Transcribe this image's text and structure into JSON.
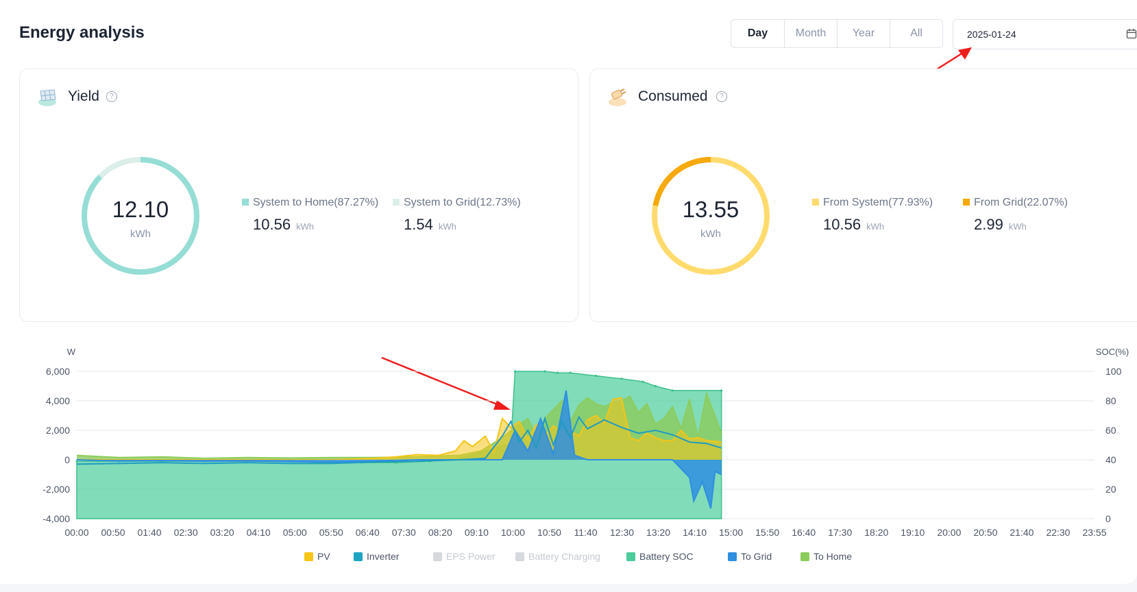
{
  "header": {
    "title": "Energy analysis",
    "tabs": [
      {
        "label": "Day",
        "active": true
      },
      {
        "label": "Month",
        "active": false
      },
      {
        "label": "Year",
        "active": false
      },
      {
        "label": "All",
        "active": false
      }
    ],
    "date": "2025-01-24",
    "date_icon": "calendar-icon"
  },
  "yield": {
    "title": "Yield",
    "help_icon": "help-circle-icon",
    "total": "12.10",
    "unit": "kWh",
    "items": [
      {
        "label": "System to Home(87.27%)",
        "value": "10.56",
        "unit": "kWh",
        "color": "#95ddd5",
        "percent": 87.27
      },
      {
        "label": "System to Grid(12.73%)",
        "value": "1.54",
        "unit": "kWh",
        "color": "#dbeee9",
        "percent": 12.73
      }
    ]
  },
  "consumed": {
    "title": "Consumed",
    "help_icon": "help-circle-icon",
    "total": "13.55",
    "unit": "kWh",
    "items": [
      {
        "label": "From System(77.93%)",
        "value": "10.56",
        "unit": "kWh",
        "color": "#ffdb6e",
        "percent": 77.93
      },
      {
        "label": "From Grid(22.07%)",
        "value": "2.99",
        "unit": "kWh",
        "color": "#f6a90c",
        "percent": 22.07
      }
    ]
  },
  "chart_data": {
    "type": "area",
    "y_left_label": "W",
    "y_right_label": "SOC(%)",
    "y_left_ticks": [
      "6,000",
      "4,000",
      "2,000",
      "0",
      "-2,000",
      "-4,000"
    ],
    "y_right_ticks": [
      "100",
      "80",
      "60",
      "40",
      "20",
      "0"
    ],
    "ylim_left": [
      -4000,
      6000
    ],
    "ylim_right": [
      0,
      100
    ],
    "x_ticks": [
      "00:00",
      "00:50",
      "01:40",
      "02:30",
      "03:20",
      "04:10",
      "05:00",
      "05:50",
      "06:40",
      "07:30",
      "08:20",
      "09:10",
      "10:00",
      "10:50",
      "11:40",
      "12:30",
      "13:20",
      "14:10",
      "15:00",
      "15:50",
      "16:40",
      "17:30",
      "18:20",
      "19:10",
      "20:00",
      "20:50",
      "21:40",
      "22:30",
      "23:55"
    ],
    "x_range_hours": [
      0,
      23.917
    ],
    "grid": true,
    "legend_position": "bottom",
    "legend": [
      {
        "name": "PV",
        "color": "#f5c518",
        "enabled": true
      },
      {
        "name": "Inverter",
        "color": "#1fa5c4",
        "enabled": true
      },
      {
        "name": "EPS Power",
        "color": "#bdbdbd",
        "enabled": false
      },
      {
        "name": "Battery Charging",
        "color": "#bdbdbd",
        "enabled": false
      },
      {
        "name": "Battery SOC",
        "color": "#4ccd9b",
        "enabled": true
      },
      {
        "name": "To Grid",
        "color": "#2f8fe0",
        "enabled": true
      },
      {
        "name": "To Home",
        "color": "#8ccc5c",
        "enabled": true
      }
    ],
    "series": [
      {
        "name": "Battery SOC",
        "axis": "right",
        "x": [
          0,
          0.5,
          1,
          2,
          3,
          4,
          5,
          5.8,
          6.7,
          7.5,
          8.3,
          9,
          9.5,
          10.05,
          10.2,
          10.3,
          11.0,
          11.3,
          11.6,
          12.2,
          12.8,
          13.3,
          13.6,
          14.0,
          15.15
        ],
        "values": [
          39,
          39,
          39,
          39,
          39,
          39,
          39,
          38,
          38,
          38,
          39,
          41,
          45,
          50,
          50,
          100,
          100,
          99,
          99,
          97,
          95,
          93,
          90,
          87,
          87
        ]
      },
      {
        "name": "PV",
        "axis": "left",
        "x": [
          0,
          1,
          2,
          3,
          4,
          5,
          6,
          7,
          7.5,
          8,
          8.5,
          8.9,
          9.1,
          9.3,
          9.6,
          9.8,
          10.0,
          10.2,
          10.4,
          10.6,
          10.8,
          11.0,
          11.2,
          11.4,
          11.6,
          11.8,
          12.0,
          12.2,
          12.4,
          12.6,
          12.8,
          13.0,
          13.2,
          13.4,
          13.6,
          13.8,
          14.0,
          14.2,
          14.4,
          14.6,
          14.8,
          15.15
        ],
        "values": [
          0,
          0,
          0,
          0,
          0,
          0,
          0,
          100,
          200,
          350,
          300,
          600,
          1300,
          900,
          1600,
          500,
          2800,
          2200,
          2600,
          1400,
          2400,
          1600,
          2300,
          1900,
          2000,
          1600,
          2700,
          3000,
          2500,
          4100,
          4200,
          1500,
          1300,
          1800,
          1500,
          1300,
          1300,
          2000,
          1400,
          1500,
          1300,
          1200
        ]
      },
      {
        "name": "To Home",
        "axis": "left",
        "x": [
          0,
          1,
          2,
          3,
          4,
          5,
          6,
          7,
          8,
          9,
          9.5,
          10.0,
          10.3,
          10.6,
          10.8,
          11.0,
          11.2,
          11.4,
          11.6,
          11.8,
          12.0,
          12.2,
          12.4,
          12.6,
          12.8,
          13.0,
          13.2,
          13.4,
          13.6,
          13.8,
          14.0,
          14.2,
          14.4,
          14.6,
          14.8,
          15.15
        ],
        "values": [
          300,
          150,
          200,
          100,
          150,
          120,
          150,
          150,
          200,
          300,
          600,
          1500,
          2200,
          2800,
          1600,
          2800,
          3400,
          4000,
          2600,
          3700,
          4200,
          3800,
          3600,
          3900,
          4000,
          4300,
          3200,
          3800,
          2400,
          2800,
          3600,
          2100,
          4100,
          1500,
          4500,
          1800
        ]
      },
      {
        "name": "Inverter",
        "axis": "left",
        "x": [
          0,
          1,
          2,
          3,
          4,
          5,
          6,
          7,
          8,
          9,
          9.6,
          10.0,
          10.2,
          10.4,
          10.6,
          10.8,
          11.0,
          11.2,
          11.4,
          11.6,
          11.8,
          12.0,
          12.4,
          12.8,
          13.2,
          13.6,
          14.0,
          14.4,
          14.8,
          15.15
        ],
        "values": [
          -300,
          -250,
          -200,
          -250,
          -200,
          -250,
          -250,
          -150,
          -100,
          0,
          100,
          1600,
          2600,
          1200,
          2000,
          800,
          2800,
          1000,
          2600,
          1500,
          2900,
          2100,
          2700,
          2200,
          1800,
          2000,
          1700,
          1200,
          1100,
          800
        ]
      },
      {
        "name": "To Grid",
        "axis": "left",
        "x": [
          0,
          1,
          2,
          3,
          4,
          5,
          6,
          7,
          8,
          9,
          10,
          10.3,
          10.6,
          10.9,
          11.2,
          11.5,
          11.7,
          12,
          13,
          14,
          14.2,
          14.4,
          14.5,
          14.7,
          14.9,
          15.0,
          15.15
        ],
        "values": [
          0,
          -80,
          -50,
          -100,
          -80,
          -120,
          -150,
          -80,
          0,
          0,
          0,
          2000,
          600,
          2800,
          400,
          4700,
          300,
          0,
          0,
          0,
          -600,
          -1200,
          -2800,
          -1500,
          -3300,
          -800,
          -1000
        ]
      }
    ]
  }
}
